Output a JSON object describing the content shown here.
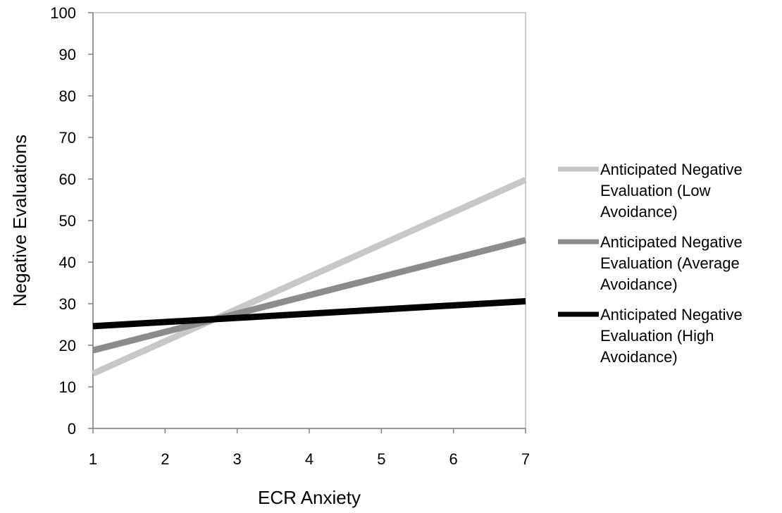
{
  "chart_data": {
    "type": "line",
    "xlabel": "ECR Anxiety",
    "ylabel": "Negative Evaluations",
    "xlim": [
      1,
      7
    ],
    "ylim": [
      0,
      100
    ],
    "x_ticks": [
      "1",
      "2",
      "3",
      "4",
      "5",
      "6",
      "7"
    ],
    "y_ticks": [
      "0",
      "10",
      "20",
      "30",
      "40",
      "50",
      "60",
      "70",
      "80",
      "90",
      "100"
    ],
    "grid": false,
    "legend_position": "right",
    "series": [
      {
        "name": "Anticipated Negative Evaluation (Low Avoidance)",
        "legend_lines": [
          "Anticipated Negative",
          "Evaluation (Low",
          "Avoidance)"
        ],
        "color": "#c8c8c8",
        "x": [
          1,
          7
        ],
        "y": [
          13.2,
          59.8
        ]
      },
      {
        "name": "Anticipated Negative Evaluation (Average Avoidance)",
        "legend_lines": [
          "Anticipated Negative",
          "Evaluation (Average",
          "Avoidance)"
        ],
        "color": "#8c8c8c",
        "x": [
          1,
          7
        ],
        "y": [
          18.8,
          45.3
        ]
      },
      {
        "name": "Anticipated Negative Evaluation (High Avoidance)",
        "legend_lines": [
          "Anticipated Negative",
          "Evaluation (High",
          "Avoidance)"
        ],
        "color": "#000000",
        "x": [
          1,
          7
        ],
        "y": [
          24.6,
          30.6
        ]
      }
    ]
  }
}
